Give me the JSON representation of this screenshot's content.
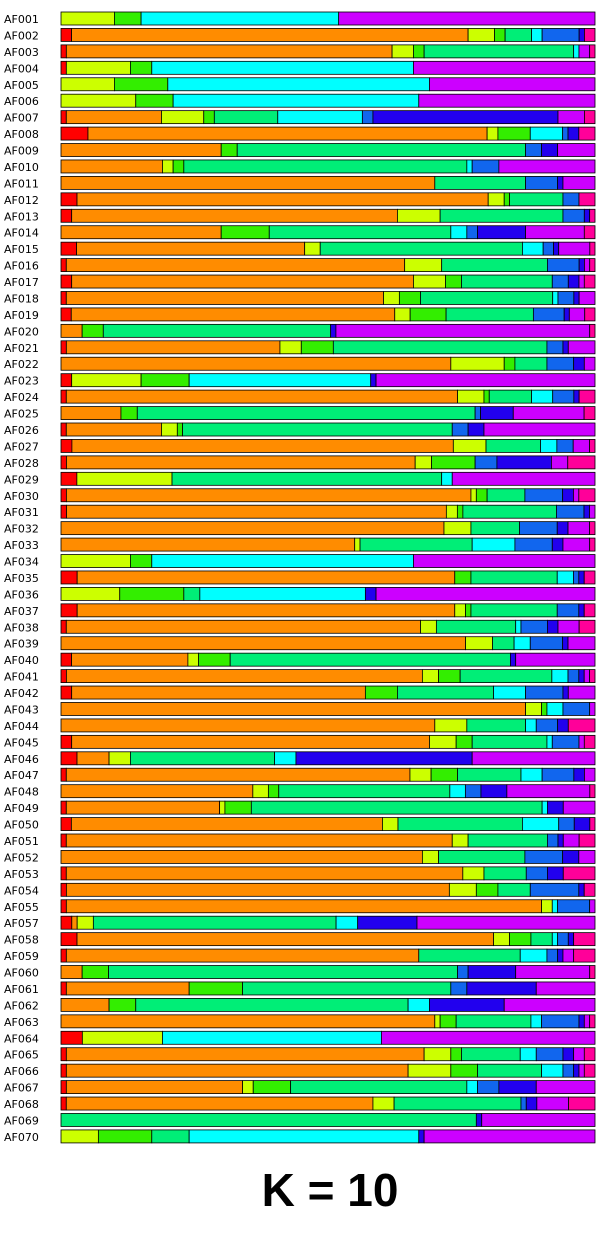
{
  "chart_data": {
    "type": "bar",
    "stacked": true,
    "normalized": true,
    "orientation": "horizontal",
    "title": "K = 10",
    "categories": [
      "AF001",
      "AF002",
      "AF003",
      "AF004",
      "AF005",
      "AF006",
      "AF007",
      "AF008",
      "AF009",
      "AF010",
      "AF011",
      "AF012",
      "AF013",
      "AF014",
      "AF015",
      "AF016",
      "AF017",
      "AF018",
      "AF019",
      "AF020",
      "AF021",
      "AF022",
      "AF023",
      "AF024",
      "AF025",
      "AF026",
      "AF027",
      "AF028",
      "AF029",
      "AF030",
      "AF031",
      "AF032",
      "AF033",
      "AF034",
      "AF035",
      "AF036",
      "AF037",
      "AF038",
      "AF039",
      "AF040",
      "AF041",
      "AF042",
      "AF043",
      "AF044",
      "AF045",
      "AF046",
      "AF047",
      "AF048",
      "AF049",
      "AF050",
      "AF051",
      "AF052",
      "AF053",
      "AF054",
      "AF055",
      "AF057",
      "AF058",
      "AF059",
      "AF060",
      "AF061",
      "AF062",
      "AF063",
      "AF064",
      "AF065",
      "AF066",
      "AF067",
      "AF068",
      "AF069",
      "AF070"
    ],
    "cluster_colors": [
      "#ff0000",
      "#ff8c00",
      "#ccff00",
      "#33ee00",
      "#00ee77",
      "#00ffff",
      "#1166ee",
      "#2200ee",
      "#cc00ff",
      "#ff0099"
    ],
    "proportions": [
      [
        0,
        0,
        0.1,
        0.05,
        0,
        0.37,
        0,
        0,
        0.48,
        0
      ],
      [
        0.02,
        0.75,
        0.05,
        0.02,
        0.05,
        0.02,
        0.07,
        0.01,
        0,
        0.02
      ],
      [
        0.01,
        0.61,
        0.04,
        0.02,
        0.28,
        0.01,
        0,
        0,
        0.02,
        0.01
      ],
      [
        0.01,
        0,
        0.12,
        0.04,
        0,
        0.49,
        0,
        0,
        0.34,
        0
      ],
      [
        0,
        0,
        0.1,
        0.1,
        0,
        0.49,
        0,
        0,
        0.31,
        0
      ],
      [
        0,
        0,
        0.14,
        0.07,
        0,
        0.46,
        0,
        0,
        0.33,
        0
      ],
      [
        0.01,
        0.18,
        0.08,
        0.02,
        0.12,
        0.16,
        0.02,
        0.35,
        0.05,
        0.02
      ],
      [
        0.05,
        0.74,
        0.02,
        0.06,
        0,
        0.06,
        0.01,
        0.02,
        0,
        0.03
      ],
      [
        0,
        0.3,
        0,
        0.03,
        0.54,
        0,
        0.03,
        0.03,
        0.07,
        0
      ],
      [
        0,
        0.19,
        0.02,
        0.02,
        0.53,
        0.01,
        0.05,
        0,
        0.18,
        0
      ],
      [
        0,
        0.7,
        0,
        0,
        0.17,
        0,
        0.06,
        0.01,
        0.06,
        0
      ],
      [
        0.03,
        0.77,
        0.03,
        0.01,
        0.1,
        0,
        0.03,
        0,
        0,
        0.03
      ],
      [
        0.02,
        0.61,
        0.08,
        0,
        0.23,
        0,
        0.04,
        0.01,
        0,
        0.01
      ],
      [
        0,
        0.3,
        0,
        0.09,
        0.34,
        0.03,
        0.02,
        0.09,
        0.11,
        0.02
      ],
      [
        0.03,
        0.44,
        0.03,
        0,
        0.39,
        0.04,
        0.02,
        0.01,
        0.06,
        0.01
      ],
      [
        0.01,
        0.64,
        0.07,
        0,
        0.2,
        0,
        0.06,
        0.01,
        0.01,
        0.01
      ],
      [
        0.02,
        0.64,
        0.06,
        0.03,
        0.17,
        0,
        0.03,
        0.02,
        0.01,
        0.02
      ],
      [
        0.01,
        0.6,
        0.03,
        0.04,
        0.25,
        0.01,
        0.03,
        0.01,
        0.03,
        0
      ],
      [
        0.02,
        0.63,
        0.03,
        0.07,
        0.17,
        0,
        0.06,
        0.01,
        0.03,
        0.02
      ],
      [
        0,
        0.04,
        0,
        0.04,
        0.43,
        0,
        0,
        0.01,
        0.48,
        0.01
      ],
      [
        0.01,
        0.4,
        0.04,
        0.06,
        0.4,
        0,
        0.03,
        0.01,
        0.05,
        0
      ],
      [
        0,
        0.73,
        0.1,
        0.02,
        0.06,
        0,
        0.05,
        0.02,
        0.02,
        0
      ],
      [
        0.02,
        0,
        0.13,
        0.09,
        0,
        0.34,
        0,
        0.01,
        0.41,
        0
      ],
      [
        0.01,
        0.74,
        0.05,
        0.01,
        0.08,
        0.04,
        0.04,
        0.01,
        0,
        0.03
      ],
      [
        0,
        0.11,
        0,
        0.03,
        0.62,
        0,
        0.01,
        0.06,
        0.13,
        0.02
      ],
      [
        0.01,
        0.18,
        0.03,
        0.01,
        0.51,
        0,
        0.03,
        0.03,
        0.21,
        0
      ],
      [
        0.02,
        0.7,
        0.06,
        0,
        0.1,
        0.03,
        0.03,
        0,
        0.03,
        0.01
      ],
      [
        0.01,
        0.64,
        0.03,
        0.08,
        0,
        0,
        0.04,
        0.1,
        0.03,
        0.05
      ],
      [
        0.03,
        0,
        0.18,
        0,
        0.51,
        0.02,
        0,
        0,
        0.27,
        0
      ],
      [
        0.01,
        0.75,
        0.01,
        0.02,
        0.07,
        0,
        0.07,
        0.02,
        0.01,
        0.03
      ],
      [
        0.01,
        0.69,
        0.02,
        0.01,
        0.17,
        0,
        0.05,
        0.01,
        0.01,
        0
      ],
      [
        0,
        0.71,
        0.05,
        0,
        0.09,
        0,
        0.07,
        0.02,
        0.04,
        0.01
      ],
      [
        0,
        0.55,
        0.01,
        0,
        0.21,
        0.08,
        0.07,
        0.02,
        0.05,
        0.01
      ],
      [
        0,
        0,
        0.13,
        0.04,
        0,
        0.49,
        0,
        0,
        0.34,
        0
      ],
      [
        0.03,
        0.7,
        0,
        0.03,
        0.16,
        0.03,
        0.01,
        0.01,
        0,
        0.02
      ],
      [
        0,
        0,
        0.11,
        0.12,
        0.03,
        0.31,
        0,
        0.02,
        0.41,
        0
      ],
      [
        0.03,
        0.7,
        0.02,
        0.01,
        0.16,
        0,
        0.04,
        0.01,
        0,
        0.02
      ],
      [
        0.01,
        0.67,
        0.03,
        0,
        0.15,
        0.01,
        0.05,
        0.02,
        0.04,
        0.03
      ],
      [
        0,
        0.75,
        0.05,
        0,
        0.04,
        0.03,
        0.06,
        0.01,
        0.05,
        0
      ],
      [
        0.02,
        0.22,
        0.02,
        0.06,
        0.53,
        0,
        0,
        0.01,
        0.15,
        0
      ],
      [
        0.01,
        0.66,
        0.03,
        0.04,
        0.17,
        0.03,
        0.02,
        0.01,
        0.01,
        0.01
      ],
      [
        0.02,
        0.55,
        0,
        0.06,
        0.18,
        0.06,
        0.07,
        0.01,
        0.05,
        0
      ],
      [
        0,
        0.87,
        0.03,
        0.01,
        0,
        0.03,
        0.05,
        0,
        0.01,
        0
      ],
      [
        0,
        0.7,
        0.06,
        0,
        0.11,
        0.02,
        0.04,
        0.02,
        0,
        0.05
      ],
      [
        0.02,
        0.67,
        0.05,
        0.03,
        0.14,
        0.01,
        0.05,
        0,
        0.01,
        0.02
      ],
      [
        0.03,
        0.06,
        0.04,
        0,
        0.27,
        0.04,
        0,
        0.33,
        0.23,
        0
      ],
      [
        0.01,
        0.65,
        0.04,
        0.05,
        0.12,
        0.04,
        0.06,
        0.02,
        0.02,
        0
      ],
      [
        0,
        0.37,
        0.03,
        0.02,
        0.33,
        0.03,
        0.03,
        0.05,
        0.16,
        0.01
      ],
      [
        0.01,
        0.29,
        0.01,
        0.05,
        0.55,
        0.01,
        0,
        0.03,
        0.06,
        0
      ],
      [
        0.02,
        0.6,
        0.03,
        0,
        0.24,
        0.07,
        0.03,
        0.03,
        0,
        0.01
      ],
      [
        0.01,
        0.73,
        0.03,
        0,
        0.15,
        0,
        0.02,
        0.01,
        0.03,
        0.03
      ],
      [
        0,
        0.67,
        0.03,
        0,
        0.16,
        0,
        0.07,
        0.03,
        0.03,
        0
      ],
      [
        0.01,
        0.75,
        0.04,
        0,
        0.08,
        0,
        0.04,
        0.03,
        0,
        0.06
      ],
      [
        0.01,
        0.71,
        0.05,
        0.04,
        0.06,
        0,
        0.09,
        0.01,
        0,
        0.02
      ],
      [
        0.01,
        0.89,
        0.02,
        0,
        0,
        0.01,
        0.06,
        0,
        0.01,
        0
      ],
      [
        0.02,
        0.01,
        0.03,
        0,
        0.45,
        0.04,
        0,
        0.11,
        0.33,
        0
      ],
      [
        0.03,
        0.78,
        0.03,
        0.04,
        0.04,
        0.01,
        0.02,
        0.01,
        0,
        0.04
      ],
      [
        0.01,
        0.66,
        0,
        0,
        0.19,
        0.05,
        0.02,
        0.01,
        0.02,
        0.04
      ],
      [
        0,
        0.04,
        0,
        0.05,
        0.66,
        0,
        0.02,
        0.09,
        0.14,
        0.01
      ],
      [
        0.01,
        0.23,
        0,
        0.1,
        0.39,
        0,
        0.03,
        0.13,
        0.11,
        0
      ],
      [
        0,
        0.09,
        0,
        0.05,
        0.51,
        0.04,
        0,
        0.14,
        0.17,
        0
      ],
      [
        0,
        0.7,
        0.01,
        0.03,
        0.14,
        0.02,
        0.07,
        0.01,
        0.01,
        0.01
      ],
      [
        0.04,
        0,
        0.15,
        0,
        0,
        0.41,
        0,
        0,
        0.4,
        0
      ],
      [
        0.01,
        0.67,
        0.05,
        0.02,
        0.11,
        0.03,
        0.05,
        0.02,
        0.02,
        0.02
      ],
      [
        0.01,
        0.64,
        0.08,
        0.05,
        0.12,
        0.04,
        0.02,
        0.01,
        0.01,
        0.02
      ],
      [
        0.01,
        0.33,
        0.02,
        0.07,
        0.33,
        0.02,
        0.04,
        0.07,
        0.11,
        0
      ],
      [
        0.01,
        0.58,
        0.04,
        0,
        0.24,
        0,
        0.01,
        0.02,
        0.06,
        0.05
      ],
      [
        0,
        0,
        0,
        0,
        0.77,
        0,
        0,
        0.01,
        0.21,
        0
      ],
      [
        0,
        0,
        0.07,
        0.1,
        0.07,
        0.43,
        0,
        0.01,
        0.32,
        0
      ]
    ]
  }
}
